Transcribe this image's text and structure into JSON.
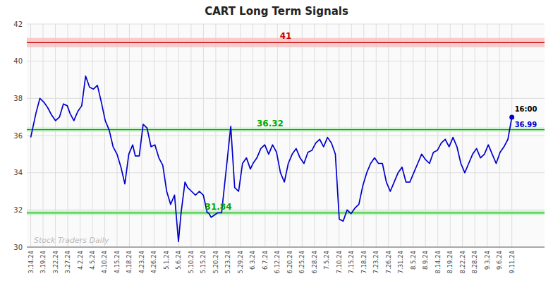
{
  "chart_data": {
    "type": "line",
    "title": "CART Long Term Signals",
    "grid": true,
    "xlim": [
      -0.3,
      39.3
    ],
    "ylim": [
      30,
      42
    ],
    "yticks": [
      30,
      32,
      34,
      36,
      38,
      40,
      42
    ],
    "xticks": [
      {
        "value": 0,
        "label": "3.14.24"
      },
      {
        "value": 0.94359,
        "label": "3.19.24"
      },
      {
        "value": 1.887179,
        "label": "3.22.24"
      },
      {
        "value": 2.830769,
        "label": "3.27.24"
      },
      {
        "value": 3.774359,
        "label": "4.2.24"
      },
      {
        "value": 4.717949,
        "label": "4.5.24"
      },
      {
        "value": 5.661538,
        "label": "4.10.24"
      },
      {
        "value": 6.605128,
        "label": "4.15.24"
      },
      {
        "value": 7.548718,
        "label": "4.18.24"
      },
      {
        "value": 8.492308,
        "label": "4.23.24"
      },
      {
        "value": 9.435897,
        "label": "4.26.24"
      },
      {
        "value": 10.379487,
        "label": "5.1.24"
      },
      {
        "value": 11.323077,
        "label": "5.6.24"
      },
      {
        "value": 12.266667,
        "label": "5.10.24"
      },
      {
        "value": 13.210256,
        "label": "5.15.24"
      },
      {
        "value": 14.153846,
        "label": "5.20.24"
      },
      {
        "value": 15.097436,
        "label": "5.23.24"
      },
      {
        "value": 16.041026,
        "label": "5.29.24"
      },
      {
        "value": 16.984615,
        "label": "6.3.24"
      },
      {
        "value": 17.928205,
        "label": "6.7.24"
      },
      {
        "value": 18.871795,
        "label": "6.12.24"
      },
      {
        "value": 19.815385,
        "label": "6.20.24"
      },
      {
        "value": 20.758974,
        "label": "6.25.24"
      },
      {
        "value": 21.702564,
        "label": "6.28.24"
      },
      {
        "value": 22.646154,
        "label": "7.5.24"
      },
      {
        "value": 23.589744,
        "label": "7.10.24"
      },
      {
        "value": 24.533333,
        "label": "7.15.24"
      },
      {
        "value": 25.476923,
        "label": "7.18.24"
      },
      {
        "value": 26.420513,
        "label": "7.23.24"
      },
      {
        "value": 27.364103,
        "label": "7.26.24"
      },
      {
        "value": 28.307692,
        "label": "7.31.24"
      },
      {
        "value": 29.251282,
        "label": "8.5.24"
      },
      {
        "value": 30.194872,
        "label": "8.9.24"
      },
      {
        "value": 31.138462,
        "label": "8.14.24"
      },
      {
        "value": 32.082051,
        "label": "8.19.24"
      },
      {
        "value": 33.025641,
        "label": "8.22.24"
      },
      {
        "value": 33.969231,
        "label": "8.28.24"
      },
      {
        "value": 34.912821,
        "label": "9.3.24"
      },
      {
        "value": 35.85641,
        "label": "9.6.24"
      },
      {
        "value": 36.8,
        "label": "9.11.24"
      }
    ],
    "x": [
      0,
      0.4,
      0.7,
      1.0,
      1.3,
      1.6,
      1.9,
      2.2,
      2.5,
      2.8,
      3.0,
      3.3,
      3.6,
      3.9,
      4.2,
      4.5,
      4.8,
      5.1,
      5.4,
      5.7,
      6.0,
      6.3,
      6.6,
      6.9,
      7.2,
      7.5,
      7.8,
      8.0,
      8.3,
      8.6,
      8.9,
      9.2,
      9.5,
      9.8,
      10.1,
      10.4,
      10.7,
      11.0,
      11.3,
      11.5,
      11.8,
      12.0,
      12.3,
      12.6,
      12.9,
      13.2,
      13.5,
      13.6,
      13.8,
      14.0,
      14.3,
      14.6,
      15.0,
      15.3,
      15.6,
      15.9,
      16.2,
      16.5,
      16.8,
      17.0,
      17.3,
      17.6,
      17.9,
      18.2,
      18.5,
      18.8,
      19.1,
      19.4,
      19.7,
      20.0,
      20.3,
      20.6,
      20.9,
      21.2,
      21.5,
      21.8,
      22.1,
      22.4,
      22.7,
      23.0,
      23.3,
      23.6,
      23.9,
      24.2,
      24.5,
      24.8,
      25.1,
      25.4,
      25.7,
      26.0,
      26.3,
      26.6,
      26.9,
      27.2,
      27.5,
      27.8,
      28.1,
      28.4,
      28.7,
      29.0,
      29.3,
      29.6,
      29.9,
      30.2,
      30.5,
      30.8,
      31.1,
      31.4,
      31.7,
      32.0,
      32.3,
      32.6,
      32.9,
      33.2,
      33.5,
      33.8,
      34.1,
      34.4,
      34.7,
      35.0,
      35.3,
      35.6,
      35.9,
      36.2,
      36.5,
      36.8
    ],
    "series": [
      {
        "color": "#0000cc",
        "marker_color": "#0000cc",
        "values": [
          35.9,
          37.2,
          38.0,
          37.8,
          37.5,
          37.1,
          36.8,
          37.0,
          37.7,
          37.6,
          37.2,
          36.8,
          37.3,
          37.6,
          39.2,
          38.6,
          38.5,
          38.7,
          37.8,
          36.8,
          36.3,
          35.4,
          35.0,
          34.3,
          33.4,
          35.0,
          35.5,
          34.9,
          34.9,
          36.6,
          36.4,
          35.4,
          35.5,
          34.8,
          34.4,
          33.0,
          32.3,
          32.8,
          30.3,
          31.85,
          33.5,
          33.2,
          33.0,
          32.8,
          33.0,
          32.8,
          31.85,
          31.85,
          31.6,
          31.7,
          31.85,
          31.85,
          34.5,
          36.5,
          33.2,
          33.0,
          34.5,
          34.8,
          34.2,
          34.5,
          34.8,
          35.3,
          35.5,
          35.0,
          35.5,
          35.1,
          34.0,
          33.5,
          34.5,
          35.0,
          35.3,
          34.8,
          34.5,
          35.1,
          35.2,
          35.6,
          35.8,
          35.4,
          35.9,
          35.6,
          35.0,
          31.5,
          31.4,
          32.0,
          31.8,
          32.1,
          32.3,
          33.3,
          34.0,
          34.5,
          34.8,
          34.5,
          34.5,
          33.5,
          33.0,
          33.5,
          34.0,
          34.3,
          33.5,
          33.5,
          34.0,
          34.5,
          35.0,
          34.7,
          34.5,
          35.1,
          35.2,
          35.6,
          35.8,
          35.4,
          35.9,
          35.4,
          34.5,
          34.0,
          34.5,
          35.0,
          35.3,
          34.8,
          35.0,
          35.5,
          35.0,
          34.5,
          35.1,
          35.4,
          35.8,
          36.99
        ]
      }
    ],
    "levels": [
      {
        "value": 41.0,
        "label": "41",
        "color": "#cc0000",
        "fill_color": "#f5c0c0",
        "band": [
          40.75,
          41.25
        ]
      },
      {
        "value": 36.32,
        "label": "36.32",
        "color": "#00aa00",
        "fill_color": "#c0f0c0",
        "band": [
          36.2,
          36.44
        ]
      },
      {
        "value": 31.84,
        "label": "31.84",
        "color": "#00aa00",
        "fill_color": "#c0f0c0",
        "band": [
          31.72,
          31.96
        ]
      }
    ],
    "annotations": [
      {
        "text": "16:00"
      },
      {
        "text": "36.99",
        "color": "#0000cc"
      }
    ],
    "watermark": {
      "text": "Stock Traders Daily",
      "color": "#bbbbbb"
    }
  }
}
